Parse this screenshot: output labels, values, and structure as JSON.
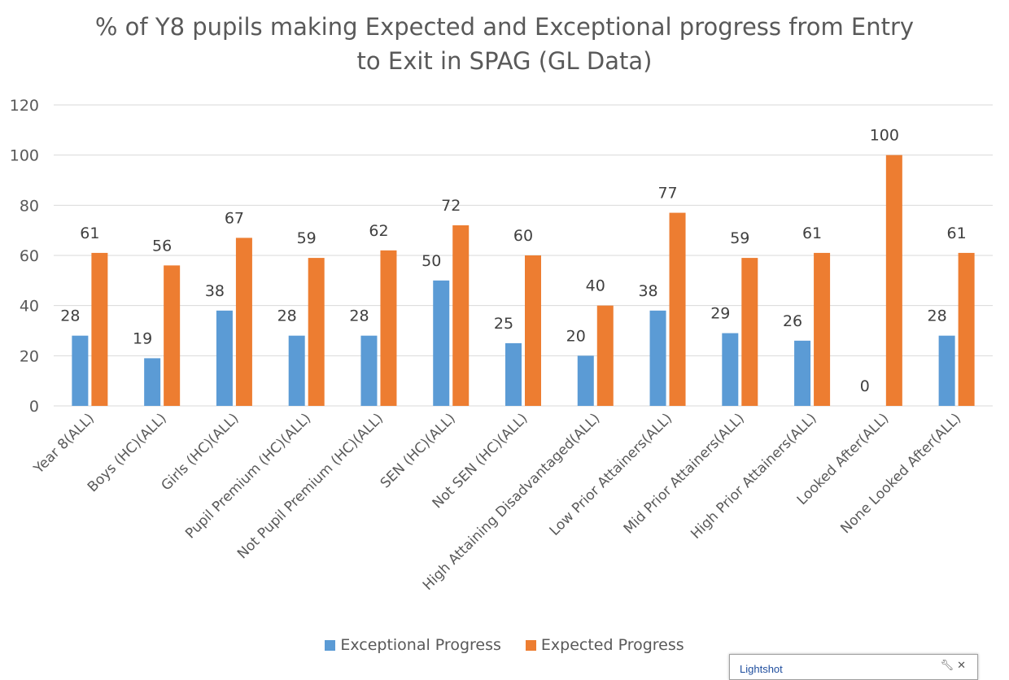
{
  "chart_data": {
    "type": "bar",
    "title_line1": "% of Y8 pupils making Expected and Exceptional progress from Entry",
    "title_line2": "to Exit in SPAG (GL Data)",
    "categories": [
      "Year  8(ALL)",
      "Boys (HC)(ALL)",
      "Girls (HC)(ALL)",
      "Pupil Premium (HC)(ALL)",
      "Not Pupil Premium (HC)(ALL)",
      "SEN (HC)(ALL)",
      "Not SEN (HC)(ALL)",
      "High Attaining Disadvantaged(ALL)",
      "Low Prior Attainers(ALL)",
      "Mid Prior Attainers(ALL)",
      "High Prior Attainers(ALL)",
      "Looked After(ALL)",
      "None Looked After(ALL)"
    ],
    "series": [
      {
        "name": "Exceptional Progress",
        "color": "#5b9bd5",
        "values": [
          28,
          19,
          38,
          28,
          28,
          50,
          25,
          20,
          38,
          29,
          26,
          0,
          28
        ]
      },
      {
        "name": "Expected Progress",
        "color": "#ed7d31",
        "values": [
          61,
          56,
          67,
          59,
          62,
          72,
          60,
          40,
          77,
          59,
          61,
          100,
          61
        ]
      }
    ],
    "ylim": [
      0,
      120
    ],
    "yticks": [
      0,
      20,
      40,
      60,
      80,
      100,
      120
    ],
    "grid": true,
    "legend_position": "bottom"
  },
  "overlay": {
    "label": "Lightshot",
    "icons": [
      "wrench-icon",
      "close-icon"
    ]
  }
}
